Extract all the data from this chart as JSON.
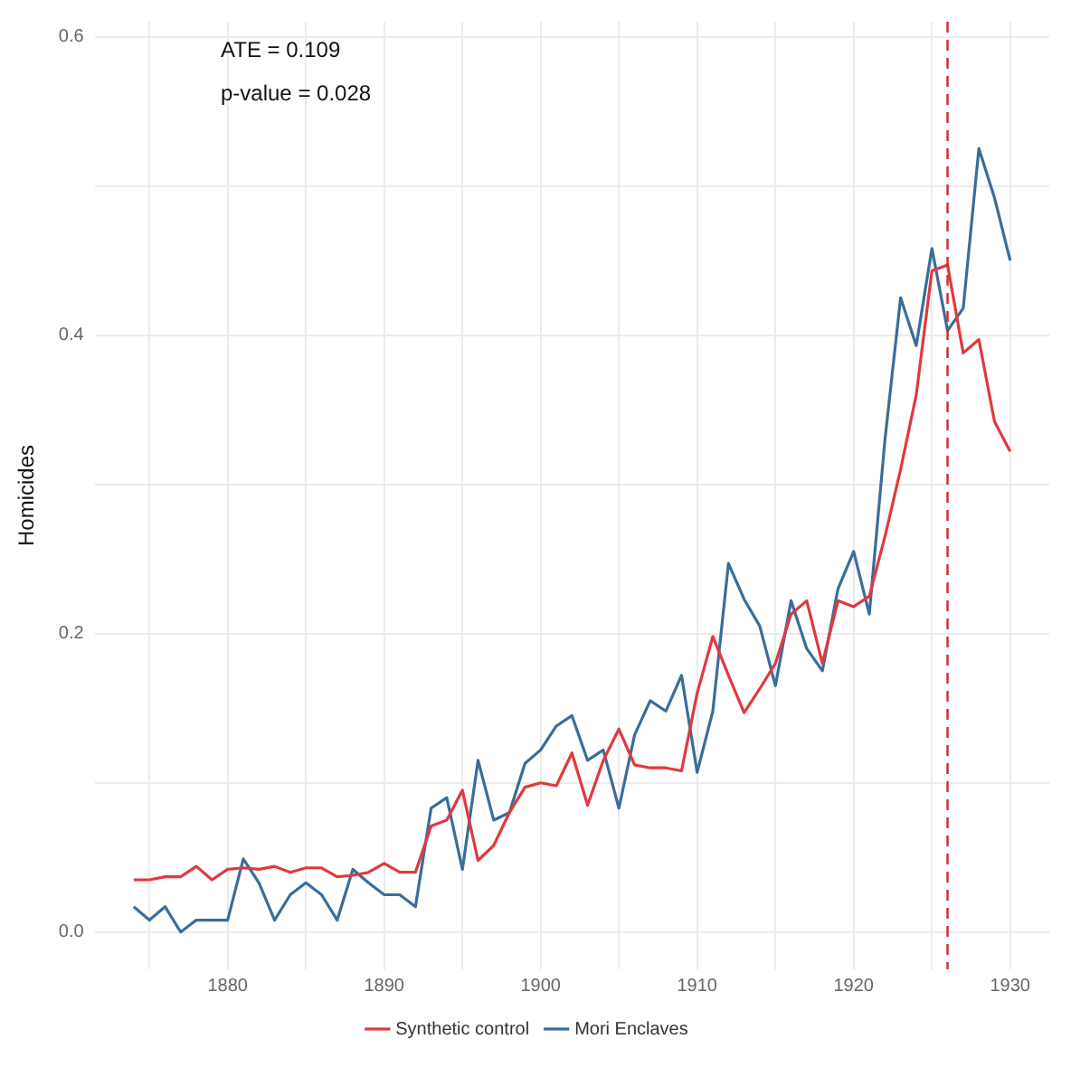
{
  "chart_data": {
    "type": "line",
    "ylabel": "Homicides",
    "annotations": [
      "ATE = 0.109",
      "p-value = 0.028"
    ],
    "x": [
      1874,
      1875,
      1876,
      1877,
      1878,
      1879,
      1880,
      1881,
      1882,
      1883,
      1884,
      1885,
      1886,
      1887,
      1888,
      1889,
      1890,
      1891,
      1892,
      1893,
      1894,
      1895,
      1896,
      1897,
      1898,
      1899,
      1900,
      1901,
      1902,
      1903,
      1904,
      1905,
      1906,
      1907,
      1908,
      1909,
      1910,
      1911,
      1912,
      1913,
      1914,
      1915,
      1916,
      1917,
      1918,
      1919,
      1920,
      1921,
      1922,
      1923,
      1924,
      1925,
      1926,
      1927,
      1928,
      1929,
      1930
    ],
    "series": [
      {
        "name": "Synthetic control",
        "color": "#e0393e",
        "values": [
          0.035,
          0.035,
          0.037,
          0.037,
          0.044,
          0.035,
          0.042,
          0.043,
          0.042,
          0.044,
          0.04,
          0.043,
          0.043,
          0.037,
          0.038,
          0.04,
          0.046,
          0.04,
          0.04,
          0.071,
          0.075,
          0.095,
          0.048,
          0.058,
          0.08,
          0.097,
          0.1,
          0.098,
          0.12,
          0.085,
          0.115,
          0.136,
          0.112,
          0.11,
          0.11,
          0.108,
          0.16,
          0.198,
          0.172,
          0.147,
          0.163,
          0.18,
          0.213,
          0.222,
          0.18,
          0.222,
          0.218,
          0.225,
          0.265,
          0.31,
          0.36,
          0.443,
          0.447,
          0.388,
          0.397,
          0.342,
          0.322
        ]
      },
      {
        "name": "Mori Enclaves",
        "color": "#3a6d9a",
        "values": [
          0.017,
          0.008,
          0.017,
          0.0,
          0.008,
          0.008,
          0.008,
          0.049,
          0.033,
          0.008,
          0.025,
          0.033,
          0.025,
          0.008,
          0.042,
          0.033,
          0.025,
          0.025,
          0.017,
          0.083,
          0.09,
          0.042,
          0.115,
          0.075,
          0.08,
          0.113,
          0.122,
          0.138,
          0.145,
          0.115,
          0.122,
          0.083,
          0.132,
          0.155,
          0.148,
          0.172,
          0.107,
          0.148,
          0.247,
          0.223,
          0.205,
          0.165,
          0.222,
          0.19,
          0.175,
          0.23,
          0.255,
          0.213,
          0.33,
          0.425,
          0.393,
          0.458,
          0.403,
          0.418,
          0.525,
          0.492,
          0.45
        ]
      }
    ],
    "xlim": [
      1871.5,
      1932.5
    ],
    "xticks": [
      {
        "value": 1875,
        "label": null
      },
      1880,
      {
        "value": 1885,
        "label": null
      },
      1890,
      {
        "value": 1895,
        "label": null
      },
      1900,
      {
        "value": 1905,
        "label": null
      },
      1910,
      {
        "value": 1915,
        "label": null
      },
      1920,
      {
        "value": 1925,
        "label": null
      },
      1930
    ],
    "ylim": [
      -0.025,
      0.61
    ],
    "yticks": [
      {
        "value": 0,
        "label": "0.0"
      },
      {
        "value": 0.1,
        "label": null
      },
      {
        "value": 0.2,
        "label": "0.2"
      },
      {
        "value": 0.3,
        "label": null
      },
      {
        "value": 0.4,
        "label": "0.4"
      },
      {
        "value": 0.5,
        "label": null
      },
      {
        "value": 0.6,
        "label": "0.6"
      }
    ],
    "ref_lines": [
      {
        "axis": "x",
        "value": 1926,
        "color": "#d62728",
        "line_style": "dashed"
      }
    ],
    "grid": true,
    "legend": "bottom",
    "marker": "none",
    "line_style": "solid"
  }
}
